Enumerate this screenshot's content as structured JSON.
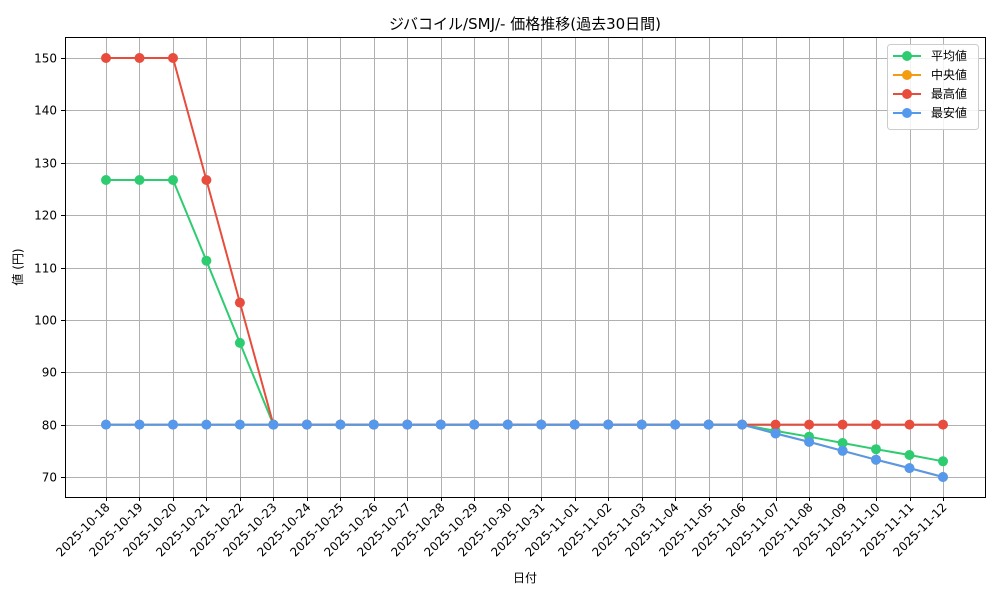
{
  "chart_data": {
    "type": "line",
    "title": "ジバコイル/SMJ/- 価格推移(過去30日間)",
    "xlabel": "日付",
    "ylabel": "値 (円)",
    "ylim": [
      66,
      154
    ],
    "yticks": [
      70,
      80,
      90,
      100,
      110,
      120,
      130,
      140,
      150
    ],
    "grid": true,
    "legend_position": "upper right",
    "categories": [
      "2025-10-18",
      "2025-10-19",
      "2025-10-20",
      "2025-10-21",
      "2025-10-22",
      "2025-10-23",
      "2025-10-24",
      "2025-10-25",
      "2025-10-26",
      "2025-10-27",
      "2025-10-28",
      "2025-10-29",
      "2025-10-30",
      "2025-10-31",
      "2025-11-01",
      "2025-11-02",
      "2025-11-03",
      "2025-11-04",
      "2025-11-05",
      "2025-11-06",
      "2025-11-07",
      "2025-11-08",
      "2025-11-09",
      "2025-11-10",
      "2025-11-11",
      "2025-11-12"
    ],
    "series": [
      {
        "name": "平均値",
        "color": "#2ecc71",
        "values": [
          126.7,
          126.7,
          126.7,
          111.3,
          95.6,
          80,
          80,
          80,
          80,
          80,
          80,
          80,
          80,
          80,
          80,
          80,
          80,
          80,
          80,
          80,
          78.8,
          77.7,
          76.5,
          75.3,
          74.2,
          73.0
        ]
      },
      {
        "name": "中央値",
        "color": "#f39c12",
        "values": [
          80,
          80,
          80,
          80,
          80,
          80,
          80,
          80,
          80,
          80,
          80,
          80,
          80,
          80,
          80,
          80,
          80,
          80,
          80,
          80,
          78.3,
          76.7,
          75.0,
          73.3,
          71.7,
          70.0
        ]
      },
      {
        "name": "最高値",
        "color": "#e74c3c",
        "values": [
          150,
          150,
          150,
          126.7,
          103.3,
          80,
          80,
          80,
          80,
          80,
          80,
          80,
          80,
          80,
          80,
          80,
          80,
          80,
          80,
          80,
          80,
          80,
          80,
          80,
          80,
          80
        ]
      },
      {
        "name": "最安値",
        "color": "#5599ee",
        "values": [
          80,
          80,
          80,
          80,
          80,
          80,
          80,
          80,
          80,
          80,
          80,
          80,
          80,
          80,
          80,
          80,
          80,
          80,
          80,
          80,
          78.3,
          76.7,
          75.0,
          73.3,
          71.7,
          70.0
        ]
      }
    ]
  }
}
